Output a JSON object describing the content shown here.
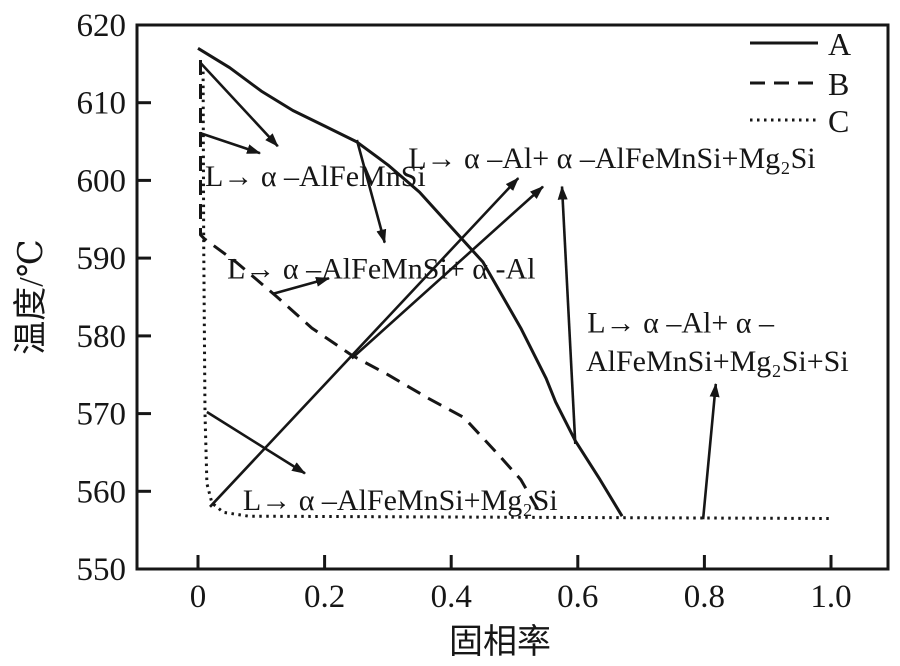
{
  "page": {
    "background": "#ffffff",
    "ink_color": "#161616"
  },
  "legend": {
    "position": "top-right",
    "items": [
      {
        "label": "A",
        "style": "solid"
      },
      {
        "label": "B",
        "style": "dashed"
      },
      {
        "label": "C",
        "style": "dotted"
      }
    ]
  },
  "chart_data": {
    "type": "line",
    "title": "",
    "xlabel": "固相率",
    "ylabel": "温度/℃",
    "xlim": [
      -0.1,
      1.09
    ],
    "ylim": [
      550,
      620
    ],
    "grid": false,
    "legend_position": "top-right",
    "x_ticks": [
      {
        "v": 0,
        "t": "0"
      },
      {
        "v": 0.2,
        "t": "0.2"
      },
      {
        "v": 0.4,
        "t": "0.4"
      },
      {
        "v": 0.6,
        "t": "0.6"
      },
      {
        "v": 0.8,
        "t": "0.8"
      },
      {
        "v": 1.0,
        "t": "1.0"
      }
    ],
    "y_ticks": [
      {
        "v": 550,
        "t": "550"
      },
      {
        "v": 560,
        "t": "560"
      },
      {
        "v": 570,
        "t": "570"
      },
      {
        "v": 580,
        "t": "580"
      },
      {
        "v": 590,
        "t": "590"
      },
      {
        "v": 600,
        "t": "600"
      },
      {
        "v": 610,
        "t": "610"
      },
      {
        "v": 620,
        "t": "620"
      }
    ],
    "series": [
      {
        "name": "A",
        "style": "solid",
        "points": [
          [
            0.0,
            617
          ],
          [
            0.05,
            614.5
          ],
          [
            0.1,
            611.5
          ],
          [
            0.15,
            609
          ],
          [
            0.2,
            607
          ],
          [
            0.25,
            605
          ],
          [
            0.3,
            602
          ],
          [
            0.35,
            598.5
          ],
          [
            0.4,
            594
          ],
          [
            0.45,
            589.5
          ],
          [
            0.51,
            581
          ],
          [
            0.55,
            574.5
          ],
          [
            0.565,
            571.5
          ],
          [
            0.596,
            566.5
          ],
          [
            0.635,
            561.5
          ],
          [
            0.67,
            556.8
          ]
        ]
      },
      {
        "name": "B",
        "style": "dashed",
        "points": [
          [
            0.004,
            615.5
          ],
          [
            0.004,
            593
          ],
          [
            0.01,
            592.5
          ],
          [
            0.06,
            589.5
          ],
          [
            0.125,
            585
          ],
          [
            0.18,
            581
          ],
          [
            0.243,
            577.5
          ],
          [
            0.3,
            575
          ],
          [
            0.363,
            572
          ],
          [
            0.42,
            569.5
          ],
          [
            0.477,
            564.5
          ],
          [
            0.51,
            561.5
          ],
          [
            0.543,
            556.8
          ]
        ]
      },
      {
        "name": "C",
        "style": "dotted",
        "points": [
          [
            0.008,
            614
          ],
          [
            0.009,
            592
          ],
          [
            0.011,
            570
          ],
          [
            0.014,
            561
          ],
          [
            0.022,
            558.5
          ],
          [
            0.04,
            557.3
          ],
          [
            0.08,
            556.8
          ],
          [
            1.0,
            556.5
          ]
        ]
      }
    ],
    "annotations": [
      {
        "text": "L→ α –AlFeMnSi",
        "x": 0.011,
        "y": 599.3
      },
      {
        "text": "L→ α –Al+ α –AlFeMnSi+Mg₂Si",
        "x": 0.332,
        "y": 601.6
      },
      {
        "text": "L→ α –AlFeMnSi+ α -Al",
        "x": 0.046,
        "y": 587.4
      },
      {
        "text": "L→ α –Al+ α –",
        "x": 0.615,
        "y": 580.4
      },
      {
        "text": "AlFeMnSi+Mg₂Si+Si",
        "x": 0.613,
        "y": 575.5
      },
      {
        "text": "L→ α –AlFeMnSi+Mg₂Si",
        "x": 0.071,
        "y": 557.6
      }
    ],
    "arrows": [
      {
        "from": [
          0.003,
          615.2
        ],
        "to": [
          0.126,
          604.4
        ]
      },
      {
        "from": [
          0.003,
          606.1
        ],
        "to": [
          0.098,
          603.5
        ]
      },
      {
        "from": [
          0.251,
          605.2
        ],
        "to": [
          0.295,
          592.0
        ]
      },
      {
        "from": [
          0.118,
          585.4
        ],
        "to": [
          0.207,
          587.4
        ]
      },
      {
        "from": [
          0.019,
          558.0
        ],
        "to": [
          0.506,
          600.3
        ]
      },
      {
        "from": [
          0.243,
          577.1
        ],
        "to": [
          0.545,
          599.2
        ]
      },
      {
        "from": [
          0.596,
          566.1
        ],
        "to": [
          0.575,
          599.2
        ]
      },
      {
        "from": [
          0.798,
          556.4
        ],
        "to": [
          0.818,
          573.8
        ]
      },
      {
        "from": [
          0.014,
          570.2
        ],
        "to": [
          0.169,
          562.3
        ]
      }
    ]
  }
}
